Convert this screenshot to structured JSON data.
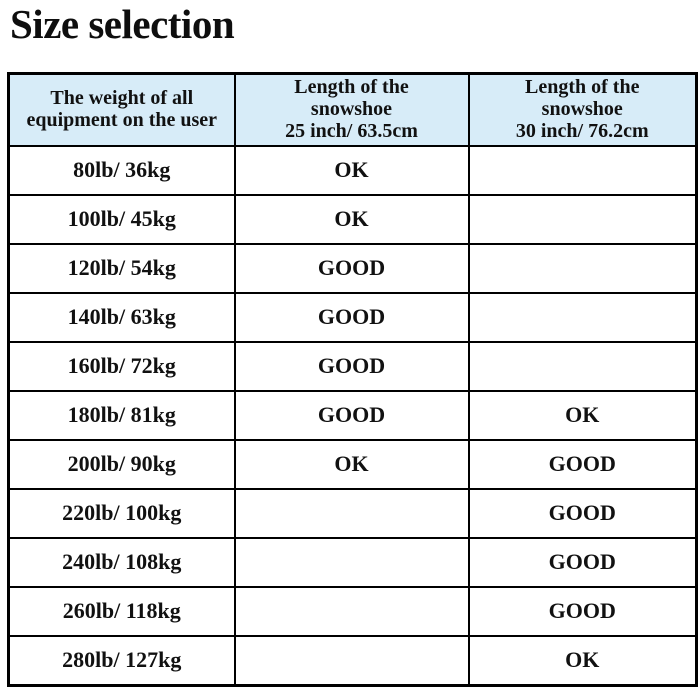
{
  "page": {
    "title": "Size selection"
  },
  "table": {
    "headers": [
      "The weight of all\nequipment on the user",
      "Length of the\nsnowshoe\n25 inch/ 63.5cm",
      "Length of the\nsnowshoe\n30 inch/ 76.2cm"
    ]
  },
  "chart_data": {
    "type": "table",
    "title": "Size selection",
    "columns": [
      "The weight of all equipment on the user",
      "Length of the snowshoe 25 inch/ 63.5cm",
      "Length of the snowshoe 30 inch/ 76.2cm"
    ],
    "rows": [
      [
        "80lb/ 36kg",
        "OK",
        ""
      ],
      [
        "100lb/ 45kg",
        "OK",
        ""
      ],
      [
        "120lb/ 54kg",
        "GOOD",
        ""
      ],
      [
        "140lb/ 63kg",
        "GOOD",
        ""
      ],
      [
        "160lb/ 72kg",
        "GOOD",
        ""
      ],
      [
        "180lb/ 81kg",
        "GOOD",
        "OK"
      ],
      [
        "200lb/ 90kg",
        "OK",
        "GOOD"
      ],
      [
        "220lb/ 100kg",
        "",
        "GOOD"
      ],
      [
        "240lb/ 108kg",
        "",
        "GOOD"
      ],
      [
        "260lb/ 118kg",
        "",
        "GOOD"
      ],
      [
        "280lb/ 127kg",
        "",
        "OK"
      ]
    ]
  },
  "colors": {
    "header_bg": "#d7ecf8",
    "border": "#000000",
    "text": "#111111",
    "background": "#ffffff"
  }
}
